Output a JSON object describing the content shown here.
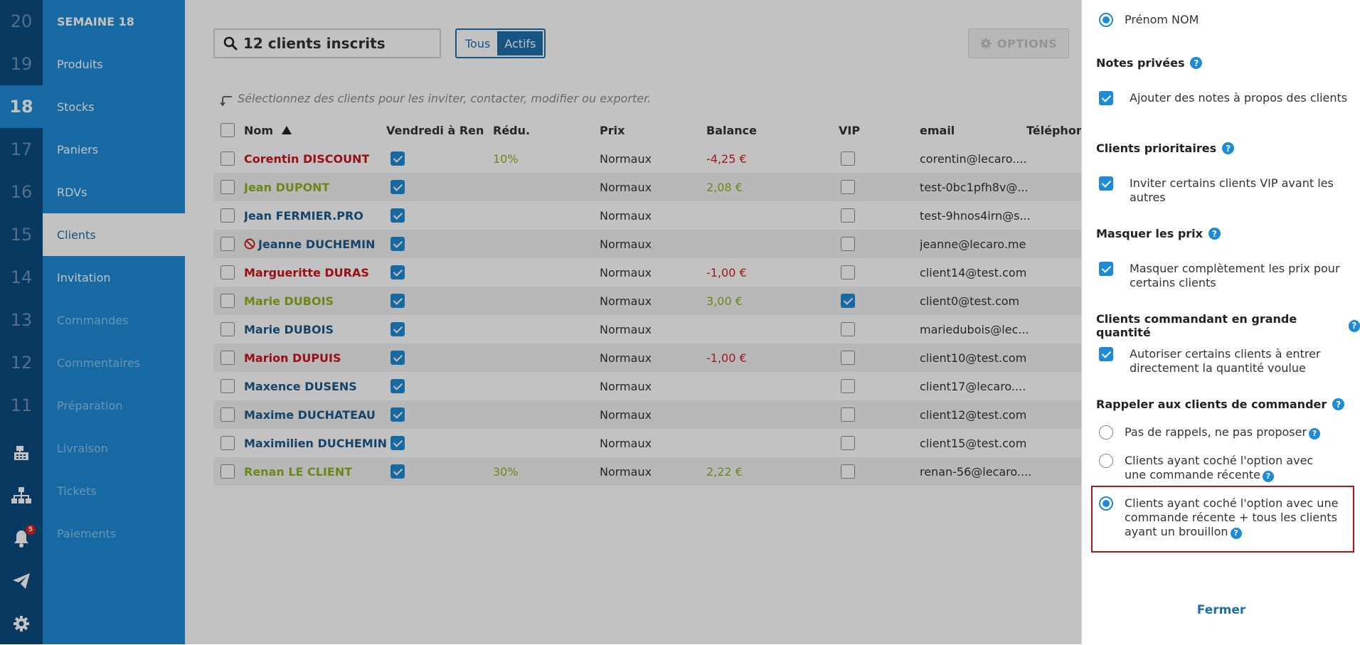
{
  "rail": {
    "weeks": [
      "20",
      "19",
      "18",
      "17",
      "16",
      "15",
      "14",
      "13",
      "12",
      "11"
    ],
    "current_week": "18",
    "notification_count": "5",
    "icons": [
      "cash-register-icon",
      "org-chart-icon",
      "bell-icon",
      "paper-plane-icon",
      "gear-icon"
    ]
  },
  "menu": {
    "header": "SEMAINE 18",
    "items": [
      "Produits",
      "Stocks",
      "Paniers",
      "RDVs",
      "Clients",
      "Invitation",
      "Commandes",
      "Commentaires",
      "Préparation",
      "Livraison",
      "Tickets",
      "Paiements"
    ],
    "active": "Clients"
  },
  "toolbar": {
    "search_value": "12 clients inscrits",
    "filter_all": "Tous",
    "filter_active": "Actifs",
    "options_label": "OPTIONS"
  },
  "hint": "Sélectionnez des clients pour les inviter, contacter, modifier ou exporter.",
  "table": {
    "headers": {
      "name": "Nom",
      "friday": "Vendredi à Ren...",
      "discount": "Rédu.",
      "price": "Prix",
      "balance": "Balance",
      "vip": "VIP",
      "email": "email",
      "phone": "Téléphone"
    },
    "rows": [
      {
        "name": "Corentin DISCOUNT",
        "color": "#c8141e",
        "friday": true,
        "discount": "10%",
        "price": "Normaux",
        "balance": "-4,25 €",
        "balance_color": "#d0202a",
        "vip": false,
        "email": "corentin@lecaro....",
        "blocked": false
      },
      {
        "name": "Jean DUPONT",
        "color": "#8ab41e",
        "friday": true,
        "discount": "",
        "price": "Normaux",
        "balance": "2,08 €",
        "balance_color": "#8ab41e",
        "vip": false,
        "email": "test-0bc1pfh8v@...",
        "blocked": false
      },
      {
        "name": "Jean FERMIER.PRO",
        "color": "#1e5a8a",
        "friday": true,
        "discount": "",
        "price": "Normaux",
        "balance": "",
        "balance_color": "#333333",
        "vip": false,
        "email": "test-9hnos4irn@s...",
        "blocked": false
      },
      {
        "name": "Jeanne DUCHEMIN",
        "color": "#1e5a8a",
        "friday": true,
        "discount": "",
        "price": "Normaux",
        "balance": "",
        "balance_color": "#333333",
        "vip": false,
        "email": "jeanne@lecaro.me",
        "blocked": true
      },
      {
        "name": "Margueritte DURAS",
        "color": "#c8141e",
        "friday": true,
        "discount": "",
        "price": "Normaux",
        "balance": "-1,00 €",
        "balance_color": "#d0202a",
        "vip": false,
        "email": "client14@test.com",
        "blocked": false
      },
      {
        "name": "Marie DUBOIS",
        "color": "#8ab41e",
        "friday": true,
        "discount": "",
        "price": "Normaux",
        "balance": "3,00 €",
        "balance_color": "#8ab41e",
        "vip": true,
        "email": "client0@test.com",
        "blocked": false
      },
      {
        "name": "Marie DUBOIS",
        "color": "#1e5a8a",
        "friday": true,
        "discount": "",
        "price": "Normaux",
        "balance": "",
        "balance_color": "#333333",
        "vip": false,
        "email": "mariedubois@lec...",
        "blocked": false
      },
      {
        "name": "Marion DUPUIS",
        "color": "#c8141e",
        "friday": true,
        "discount": "",
        "price": "Normaux",
        "balance": "-1,00 €",
        "balance_color": "#d0202a",
        "vip": false,
        "email": "client10@test.com",
        "blocked": false
      },
      {
        "name": "Maxence DUSENS",
        "color": "#1e5a8a",
        "friday": true,
        "discount": "",
        "price": "Normaux",
        "balance": "",
        "balance_color": "#333333",
        "vip": false,
        "email": "client17@lecaro....",
        "blocked": false
      },
      {
        "name": "Maxime DUCHATEAU",
        "color": "#1e5a8a",
        "friday": true,
        "discount": "",
        "price": "Normaux",
        "balance": "",
        "balance_color": "#333333",
        "vip": false,
        "email": "client12@test.com",
        "blocked": false
      },
      {
        "name": "Maximilien DUCHEMIN",
        "color": "#1e5a8a",
        "friday": true,
        "discount": "",
        "price": "Normaux",
        "balance": "",
        "balance_color": "#333333",
        "vip": false,
        "email": "client15@test.com",
        "blocked": false
      },
      {
        "name": "Renan LE CLIENT",
        "color": "#8ab41e",
        "friday": true,
        "discount": "30%",
        "price": "Normaux",
        "balance": "2,22 €",
        "balance_color": "#8ab41e",
        "vip": false,
        "email": "renan-56@lecaro....",
        "blocked": false
      }
    ]
  },
  "panel": {
    "name_format_option": "Prénom NOM",
    "private_notes": {
      "title": "Notes privées",
      "option": "Ajouter des notes à propos des clients",
      "checked": true
    },
    "priority_clients": {
      "title": "Clients prioritaires",
      "option": "Inviter certains clients VIP avant les autres",
      "checked": true
    },
    "hide_prices": {
      "title": "Masquer les prix",
      "option": "Masquer complètement les prix pour certains clients",
      "checked": true
    },
    "bulk_clients": {
      "title": "Clients commandant en grande quantité",
      "option": "Autoriser certains clients à entrer directement la quantité voulue",
      "checked": true
    },
    "reminders": {
      "title": "Rappeler aux clients de commander",
      "options": [
        "Pas de rappels, ne pas proposer",
        "Clients ayant coché l'option avec une commande récente",
        "Clients ayant coché l'option avec une commande récente + tous les clients ayant un brouillon"
      ],
      "selected_index": 2
    },
    "close_label": "Fermer"
  },
  "colors": {
    "rail": "#0a4c80",
    "menu": "#1e8bd6",
    "accent": "#1e6fae",
    "highlight_border": "#b0121e"
  }
}
